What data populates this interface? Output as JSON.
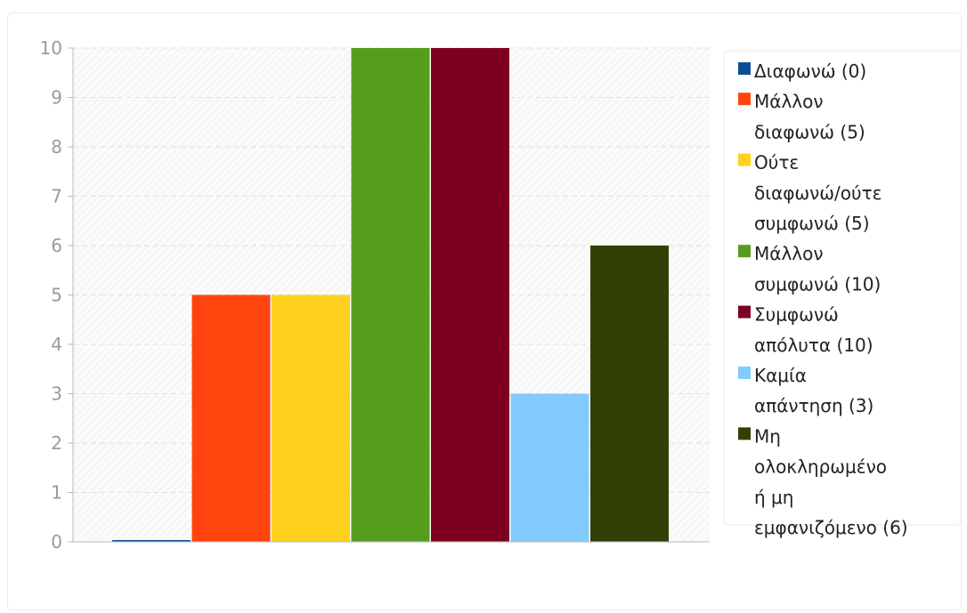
{
  "chart_data": {
    "type": "bar",
    "title": "",
    "xlabel": "",
    "ylabel": "",
    "ylim": [
      0,
      10
    ],
    "yticks": [
      "0",
      "1",
      "2",
      "3",
      "4",
      "5",
      "6",
      "7",
      "8",
      "9",
      "10"
    ],
    "grid": true,
    "legend_position": "right",
    "series": [
      {
        "label_lines": [
          "Διαφωνώ (0)"
        ],
        "value": 0,
        "color": "#0b4e96"
      },
      {
        "label_lines": [
          "Μάλλον",
          "διαφωνώ (5)"
        ],
        "value": 5,
        "color": "#ff450d"
      },
      {
        "label_lines": [
          "Ούτε",
          "διαφωνώ/ούτε",
          "συμφωνώ (5)"
        ],
        "value": 5,
        "color": "#ffd11e"
      },
      {
        "label_lines": [
          "Μάλλον",
          "συμφωνώ (10)"
        ],
        "value": 10,
        "color": "#579d1c"
      },
      {
        "label_lines": [
          "Συμφωνώ",
          "απόλυτα (10)"
        ],
        "value": 10,
        "color": "#7e0021"
      },
      {
        "label_lines": [
          "Καμία",
          "απάντηση (3)"
        ],
        "value": 3,
        "color": "#83caff"
      },
      {
        "label_lines": [
          "Μη",
          "ολοκληρωμένο",
          "ή μη",
          "εμφανιζόμενο (6)"
        ],
        "value": 6,
        "color": "#314004"
      }
    ]
  }
}
